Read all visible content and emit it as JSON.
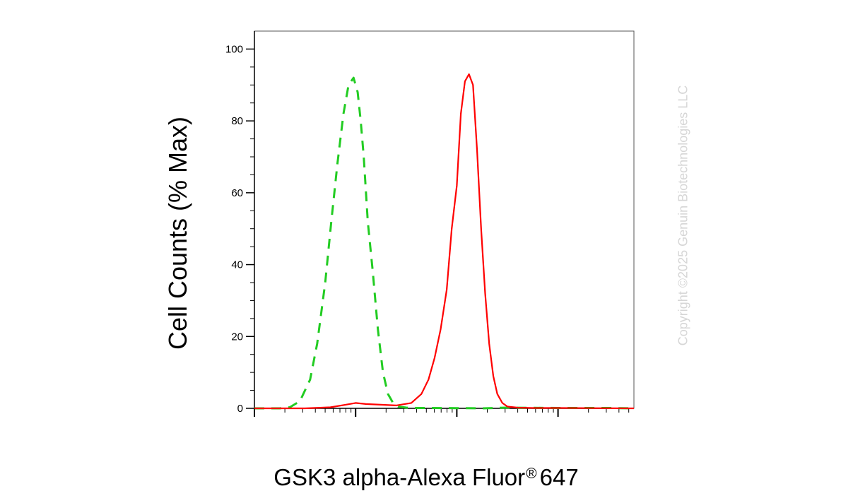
{
  "chart_data": {
    "type": "line",
    "title": "",
    "ylabel": "Cell Counts (% Max)",
    "xlabel_main": "GSK3 alpha-Alexa Fluor",
    "xlabel_mark": "®",
    "xlabel_suffix": "647",
    "ylim": [
      0,
      105
    ],
    "yticks": [
      "0",
      "20",
      "40",
      "60",
      "80",
      "100"
    ],
    "x_scale": "log",
    "xlim": [
      0,
      3.75
    ],
    "grid": false,
    "series": [
      {
        "color": "#22cc22",
        "style": "dashed",
        "x": [
          0.0,
          0.25,
          0.35,
          0.45,
          0.55,
          0.62,
          0.7,
          0.76,
          0.82,
          0.88,
          0.93,
          0.98,
          1.02,
          1.05,
          1.08,
          1.12,
          1.17,
          1.22,
          1.27,
          1.32,
          1.37,
          1.42,
          1.5,
          1.6,
          1.75,
          2.0,
          2.25,
          2.5,
          3.0,
          3.5,
          3.75
        ],
        "y": [
          0,
          0,
          0.3,
          2,
          8,
          18,
          35,
          52,
          68,
          82,
          90,
          92,
          88,
          80,
          70,
          52,
          38,
          22,
          10,
          4,
          1.5,
          0.5,
          0.2,
          0.1,
          0.1,
          0.05,
          0,
          0.2,
          0.1,
          0.1,
          0
        ]
      },
      {
        "color": "#ff0000",
        "style": "solid",
        "x": [
          0.0,
          0.5,
          0.75,
          0.9,
          1.0,
          1.1,
          1.25,
          1.4,
          1.55,
          1.65,
          1.72,
          1.78,
          1.84,
          1.9,
          1.95,
          2.0,
          2.04,
          2.08,
          2.12,
          2.16,
          2.2,
          2.24,
          2.28,
          2.32,
          2.36,
          2.4,
          2.45,
          2.5,
          2.6,
          2.75,
          3.0,
          3.3,
          3.75
        ],
        "y": [
          0,
          0,
          0.3,
          1,
          1.5,
          1.2,
          1,
          0.8,
          1.5,
          4,
          8,
          14,
          22,
          33,
          50,
          62,
          82,
          91,
          93,
          90,
          72,
          50,
          32,
          18,
          9,
          4,
          1.5,
          0.5,
          0.2,
          0.1,
          0.1,
          0.05,
          0
        ]
      }
    ]
  },
  "watermark": "Copyright ©2025 Genuin Biotechnologies LLC"
}
